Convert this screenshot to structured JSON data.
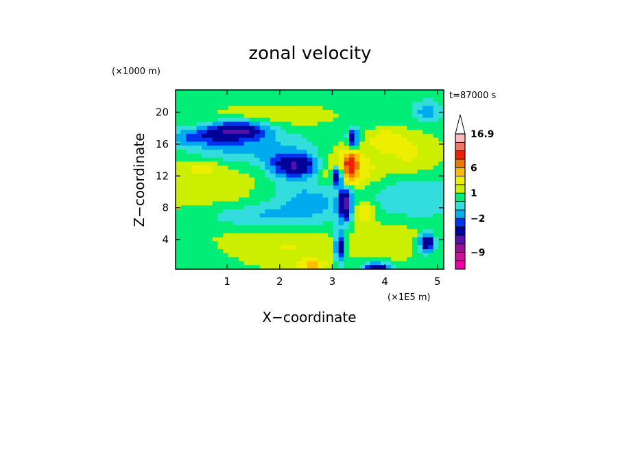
{
  "chart_data": {
    "type": "heatmap",
    "title": "zonal velocity",
    "xlabel": "X−coordinate",
    "ylabel": "Z−coordinate",
    "x_unit": "(×1E5 m)",
    "y_unit": "(×1000 m)",
    "time_label": "t=87000 s",
    "x_ticks": [
      "1",
      "2",
      "3",
      "4",
      "5"
    ],
    "x_tick_values": [
      1,
      2,
      3,
      4,
      5
    ],
    "y_ticks": [
      "4",
      "8",
      "12",
      "16",
      "20"
    ],
    "y_tick_values": [
      4,
      8,
      12,
      16,
      20
    ],
    "xlim": [
      0.02,
      5.12
    ],
    "ylim": [
      0.3,
      22.8
    ],
    "colorbar": {
      "levels": [
        -13,
        -11,
        -9,
        -7,
        -5,
        -3,
        -2,
        -1,
        0,
        1,
        2,
        4,
        6,
        8,
        11,
        14,
        16.9
      ],
      "colors": [
        "#ee00aa",
        "#cc1199",
        "#991199",
        "#5511aa",
        "#000099",
        "#0033ee",
        "#00aaee",
        "#33dddd",
        "#00ee77",
        "#ccee00",
        "#eeee00",
        "#ffbb00",
        "#ee7700",
        "#ee2200",
        "#ee7766",
        "#ffbbbb"
      ],
      "labels": [
        "16.9",
        "6",
        "1",
        "−2",
        "−9"
      ],
      "label_values": [
        16.9,
        6,
        1,
        -2,
        -9
      ]
    },
    "field_features": [
      {
        "x": 1.0,
        "z": 10.0,
        "sx": 1.6,
        "sz": 6.0,
        "amp": 1.0
      },
      {
        "x": 2.2,
        "z": 3.0,
        "sx": 0.9,
        "sz": 2.5,
        "amp": 1.3
      },
      {
        "x": 4.2,
        "z": 4.0,
        "sx": 0.9,
        "sz": 2.5,
        "amp": 1.1
      },
      {
        "x": 1.9,
        "z": 19.5,
        "sx": 1.2,
        "sz": 1.5,
        "amp": 1.1
      },
      {
        "x": 4.5,
        "z": 14.5,
        "sx": 0.6,
        "sz": 3.0,
        "amp": 1.6
      },
      {
        "x": 0.5,
        "z": 13.0,
        "sx": 0.4,
        "sz": 1.0,
        "amp": 1.4
      },
      {
        "x": 3.35,
        "z": 13.5,
        "sx": 0.15,
        "sz": 1.8,
        "amp": 7.0
      },
      {
        "x": 3.6,
        "z": 7.5,
        "sx": 0.2,
        "sz": 1.5,
        "amp": 3.0
      },
      {
        "x": 2.6,
        "z": 0.8,
        "sx": 0.25,
        "sz": 0.6,
        "amp": 4.0
      },
      {
        "x": 3.25,
        "z": 12.6,
        "sx": 0.6,
        "sz": 2.5,
        "amp": 3.0
      },
      {
        "x": 4.0,
        "z": 16.5,
        "sx": 0.3,
        "sz": 1.2,
        "amp": 2.5
      },
      {
        "x": 1.2,
        "z": 17.8,
        "sx": 0.55,
        "sz": 1.1,
        "amp": -5.5
      },
      {
        "x": 2.3,
        "z": 13.3,
        "sx": 0.45,
        "sz": 1.4,
        "amp": -5.5
      },
      {
        "x": 1.4,
        "z": 15.5,
        "sx": 1.2,
        "sz": 2.2,
        "amp": -2.4
      },
      {
        "x": 0.4,
        "z": 16.8,
        "sx": 0.7,
        "sz": 1.1,
        "amp": -2.3
      },
      {
        "x": 2.6,
        "z": 9.5,
        "sx": 0.9,
        "sz": 3.2,
        "amp": -2.3
      },
      {
        "x": 3.1,
        "z": 12.0,
        "sx": 0.1,
        "sz": 1.2,
        "amp": -7.0
      },
      {
        "x": 3.25,
        "z": 8.5,
        "sx": 0.12,
        "sz": 2.0,
        "amp": -6.0
      },
      {
        "x": 3.4,
        "z": 16.5,
        "sx": 0.1,
        "sz": 1.5,
        "amp": -5.0
      },
      {
        "x": 3.15,
        "z": 3.0,
        "sx": 0.1,
        "sz": 2.0,
        "amp": -5.0
      },
      {
        "x": 4.8,
        "z": 3.6,
        "sx": 0.15,
        "sz": 1.2,
        "amp": -6.0
      },
      {
        "x": 3.85,
        "z": 0.6,
        "sx": 0.25,
        "sz": 0.5,
        "amp": -5.0
      },
      {
        "x": 4.6,
        "z": 9.5,
        "sx": 0.8,
        "sz": 3.0,
        "amp": -1.7
      },
      {
        "x": 4.8,
        "z": 20.0,
        "sx": 0.3,
        "sz": 1.5,
        "amp": -2.0
      },
      {
        "x": 1.5,
        "z": 7.0,
        "sx": 1.1,
        "sz": 1.6,
        "amp": -2.0
      }
    ]
  }
}
